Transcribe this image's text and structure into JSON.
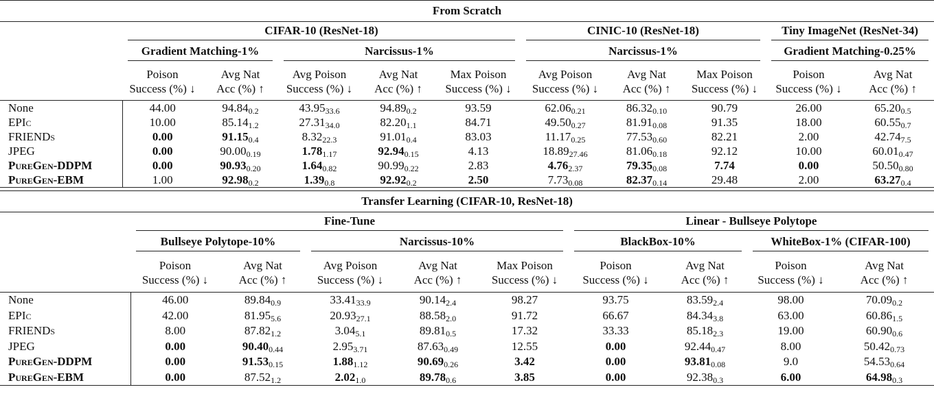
{
  "top": {
    "title": "From Scratch",
    "datasets": [
      "CIFAR-10 (ResNet-18)",
      "CINIC-10 (ResNet-18)",
      "Tiny ImageNet (ResNet-34)"
    ],
    "subgroups": [
      "Gradient Matching-1%",
      "Narcissus-1%",
      "Narcissus-1%",
      "Gradient Matching-0.25%"
    ],
    "columns": [
      [
        "Poison",
        "Success (%) ↓"
      ],
      [
        "Avg Nat",
        "Acc (%) ↑"
      ],
      [
        "Avg Poison",
        "Success (%) ↓"
      ],
      [
        "Avg Nat",
        "Acc (%) ↑"
      ],
      [
        "Max Poison",
        "Success (%) ↓"
      ],
      [
        "Avg Poison",
        "Success (%) ↓"
      ],
      [
        "Avg Nat",
        "Acc (%) ↑"
      ],
      [
        "Max Poison",
        "Success (%) ↓"
      ],
      [
        "Poison",
        "Success (%) ↓"
      ],
      [
        "Avg Nat",
        "Acc (%) ↑"
      ]
    ],
    "rows": [
      {
        "method": "None",
        "cells": [
          {
            "v": "44.00"
          },
          {
            "v": "94.84",
            "s": "0.2"
          },
          {
            "v": "43.95",
            "s": "33.6"
          },
          {
            "v": "94.89",
            "s": "0.2"
          },
          {
            "v": "93.59"
          },
          {
            "v": "62.06",
            "s": "0.21"
          },
          {
            "v": "86.32",
            "s": "0.10"
          },
          {
            "v": "90.79"
          },
          {
            "v": "26.00"
          },
          {
            "v": "65.20",
            "s": "0.5"
          }
        ]
      },
      {
        "method": "EPIc",
        "sc": true,
        "cells": [
          {
            "v": "10.00"
          },
          {
            "v": "85.14",
            "s": "1.2"
          },
          {
            "v": "27.31",
            "s": "34.0"
          },
          {
            "v": "82.20",
            "s": "1.1"
          },
          {
            "v": "84.71"
          },
          {
            "v": "49.50",
            "s": "0.27"
          },
          {
            "v": "81.91",
            "s": "0.08"
          },
          {
            "v": "91.35"
          },
          {
            "v": "18.00"
          },
          {
            "v": "60.55",
            "s": "0.7"
          }
        ]
      },
      {
        "method": "FRIENDs",
        "sc": true,
        "cells": [
          {
            "v": "0.00",
            "b": true
          },
          {
            "v": "91.15",
            "s": "0.4",
            "b": true
          },
          {
            "v": "8.32",
            "s": "22.3"
          },
          {
            "v": "91.01",
            "s": "0.4"
          },
          {
            "v": "83.03"
          },
          {
            "v": "11.17",
            "s": "0.25"
          },
          {
            "v": "77.53",
            "s": "0.60"
          },
          {
            "v": "82.21"
          },
          {
            "v": "2.00"
          },
          {
            "v": "42.74",
            "s": "7.5"
          }
        ]
      },
      {
        "method": "JPEG",
        "cells": [
          {
            "v": "0.00",
            "b": true
          },
          {
            "v": "90.00",
            "s": "0.19"
          },
          {
            "v": "1.78",
            "s": "1.17",
            "b": true
          },
          {
            "v": "92.94",
            "s": "0.15",
            "b": true
          },
          {
            "v": "4.13"
          },
          {
            "v": "18.89",
            "s": "27.46"
          },
          {
            "v": "81.06",
            "s": "0.18"
          },
          {
            "v": "92.12"
          },
          {
            "v": "10.00"
          },
          {
            "v": "60.01",
            "s": "0.47"
          }
        ]
      },
      {
        "method": "PureGen-DDPM",
        "sc": true,
        "bold": true,
        "cells": [
          {
            "v": "0.00",
            "b": true
          },
          {
            "v": "90.93",
            "s": "0.20",
            "b": true
          },
          {
            "v": "1.64",
            "s": "0.82",
            "b": true
          },
          {
            "v": "90.99",
            "s": "0.22"
          },
          {
            "v": "2.83"
          },
          {
            "v": "4.76",
            "s": "2.37",
            "b": true
          },
          {
            "v": "79.35",
            "s": "0.08",
            "b": true
          },
          {
            "v": "7.74",
            "b": true
          },
          {
            "v": "0.00",
            "b": true
          },
          {
            "v": "50.50",
            "s": "0.80"
          }
        ]
      },
      {
        "method": "PureGen-EBM",
        "sc": true,
        "bold": true,
        "cells": [
          {
            "v": "1.00"
          },
          {
            "v": "92.98",
            "s": "0.2",
            "b": true
          },
          {
            "v": "1.39",
            "s": "0.8",
            "b": true
          },
          {
            "v": "92.92",
            "s": "0.2",
            "b": true
          },
          {
            "v": "2.50",
            "b": true
          },
          {
            "v": "7.73",
            "s": "0.08"
          },
          {
            "v": "82.37",
            "s": "0.14",
            "b": true
          },
          {
            "v": "29.48"
          },
          {
            "v": "2.00"
          },
          {
            "v": "63.27",
            "s": "0.4",
            "b": true
          }
        ]
      }
    ]
  },
  "bottom": {
    "title": "Transfer Learning (CIFAR-10, ResNet-18)",
    "datasets": [
      "Fine-Tune",
      "Linear - Bullseye Polytope"
    ],
    "subgroups": [
      "Bullseye Polytope-10%",
      "Narcissus-10%",
      "BlackBox-10%",
      "WhiteBox-1% (CIFAR-100)"
    ],
    "columns": [
      [
        "Poison",
        "Success (%) ↓"
      ],
      [
        "Avg Nat",
        "Acc (%) ↑"
      ],
      [
        "Avg Poison",
        "Success (%) ↓"
      ],
      [
        "Avg Nat",
        "Acc (%) ↑"
      ],
      [
        "Max Poison",
        "Success (%) ↓"
      ],
      [
        "Poison",
        "Success (%) ↓"
      ],
      [
        "Avg Nat",
        "Acc (%) ↑"
      ],
      [
        "Poison",
        "Success (%) ↓"
      ],
      [
        "Avg Nat",
        "Acc (%) ↑"
      ]
    ],
    "rows": [
      {
        "method": "None",
        "cells": [
          {
            "v": "46.00"
          },
          {
            "v": "89.84",
            "s": "0.9"
          },
          {
            "v": "33.41",
            "s": "33.9"
          },
          {
            "v": "90.14",
            "s": "2.4"
          },
          {
            "v": "98.27"
          },
          {
            "v": "93.75"
          },
          {
            "v": "83.59",
            "s": "2.4"
          },
          {
            "v": "98.00"
          },
          {
            "v": "70.09",
            "s": "0.2"
          }
        ]
      },
      {
        "method": "EPIc",
        "sc": true,
        "cells": [
          {
            "v": "42.00"
          },
          {
            "v": "81.95",
            "s": "5.6"
          },
          {
            "v": "20.93",
            "s": "27.1"
          },
          {
            "v": "88.58",
            "s": "2.0"
          },
          {
            "v": "91.72"
          },
          {
            "v": "66.67"
          },
          {
            "v": "84.34",
            "s": "3.8"
          },
          {
            "v": "63.00"
          },
          {
            "v": "60.86",
            "s": "1.5"
          }
        ]
      },
      {
        "method": "FRIENDs",
        "sc": true,
        "cells": [
          {
            "v": "8.00"
          },
          {
            "v": "87.82",
            "s": "1.2"
          },
          {
            "v": "3.04",
            "s": "5.1"
          },
          {
            "v": "89.81",
            "s": "0.5"
          },
          {
            "v": "17.32"
          },
          {
            "v": "33.33"
          },
          {
            "v": "85.18",
            "s": "2.3"
          },
          {
            "v": "19.00"
          },
          {
            "v": "60.90",
            "s": "0.6"
          }
        ]
      },
      {
        "method": "JPEG",
        "cells": [
          {
            "v": "0.00",
            "b": true
          },
          {
            "v": "90.40",
            "s": "0.44",
            "b": true
          },
          {
            "v": "2.95",
            "s": "3.71"
          },
          {
            "v": "87.63",
            "s": "0.49"
          },
          {
            "v": "12.55"
          },
          {
            "v": "0.00",
            "b": true
          },
          {
            "v": "92.44",
            "s": "0.47"
          },
          {
            "v": "8.00"
          },
          {
            "v": "50.42",
            "s": "0.73"
          }
        ]
      },
      {
        "method": "PureGen-DDPM",
        "sc": true,
        "bold": true,
        "cells": [
          {
            "v": "0.00",
            "b": true
          },
          {
            "v": "91.53",
            "s": "0.15",
            "b": true
          },
          {
            "v": "1.88",
            "s": "1.12",
            "b": true
          },
          {
            "v": "90.69",
            "s": "0.26",
            "b": true
          },
          {
            "v": "3.42",
            "b": true
          },
          {
            "v": "0.00",
            "b": true
          },
          {
            "v": "93.81",
            "s": "0.08",
            "b": true
          },
          {
            "v": "9.0"
          },
          {
            "v": "54.53",
            "s": "0.64"
          }
        ]
      },
      {
        "method": "PureGen-EBM",
        "sc": true,
        "bold": true,
        "cells": [
          {
            "v": "0.00",
            "b": true
          },
          {
            "v": "87.52",
            "s": "1.2"
          },
          {
            "v": "2.02",
            "s": "1.0",
            "b": true
          },
          {
            "v": "89.78",
            "s": "0.6",
            "b": true
          },
          {
            "v": "3.85",
            "b": true
          },
          {
            "v": "0.00",
            "b": true
          },
          {
            "v": "92.38",
            "s": "0.3"
          },
          {
            "v": "6.00",
            "b": true
          },
          {
            "v": "64.98",
            "s": "0.3",
            "b": true
          }
        ]
      }
    ]
  }
}
